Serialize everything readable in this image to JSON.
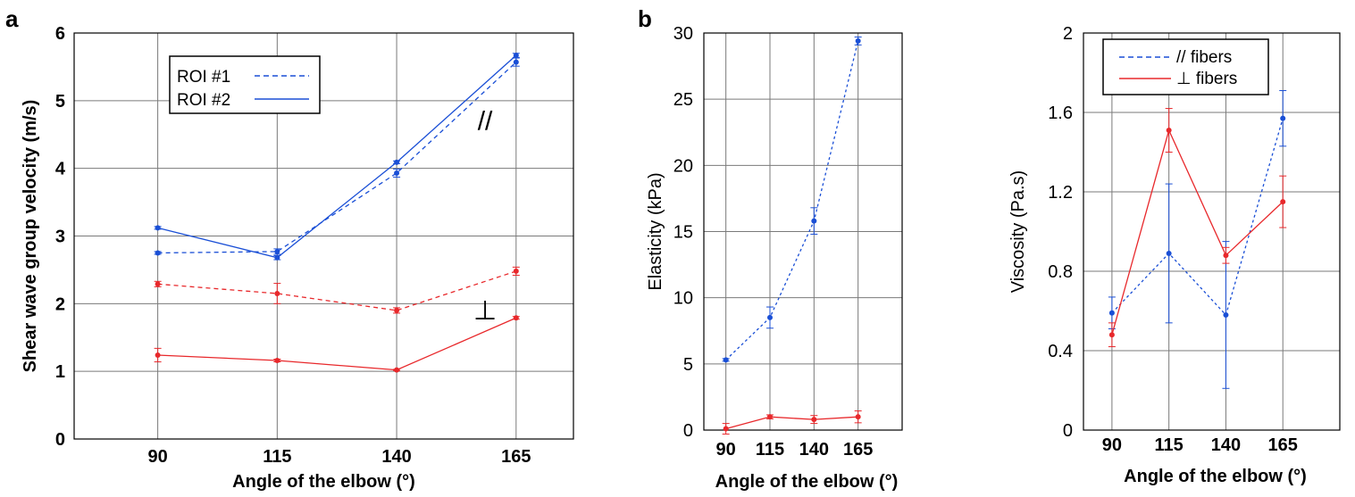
{
  "panels": {
    "a": {
      "label": "a"
    },
    "b": {
      "label": "b"
    }
  },
  "colors": {
    "blue": "#1a4fd6",
    "red": "#e8282b",
    "grid": "#7a7a7a"
  },
  "chart_data": [
    {
      "type": "line",
      "panel": "a",
      "xlabel": "Angle of the elbow (°)",
      "ylabel": "Shear wave group velocity (m/s)",
      "x": [
        90,
        115,
        140,
        165
      ],
      "xticks": [
        "90",
        "115",
        "140",
        "165"
      ],
      "xlim": [
        72.5,
        177
      ],
      "ylim": [
        0,
        6
      ],
      "yticks": [
        "0",
        "1",
        "2",
        "3",
        "4",
        "5",
        "6"
      ],
      "grid": true,
      "legend": {
        "position": "top-left",
        "entries": [
          {
            "label": "ROI #1",
            "style": "dashed"
          },
          {
            "label": "ROI #2",
            "style": "solid"
          }
        ]
      },
      "annotations": [
        {
          "text": "//",
          "x": 158.5,
          "y": 4.7
        },
        {
          "text": "⊥",
          "x": 158.5,
          "y": 1.9
        }
      ],
      "series": [
        {
          "color": "#1a4fd6",
          "style": "dashed",
          "values": [
            2.75,
            2.77,
            3.93,
            5.57
          ],
          "err": [
            0.02,
            0.04,
            0.06,
            0.06
          ]
        },
        {
          "color": "#1a4fd6",
          "style": "solid",
          "values": [
            3.12,
            2.68,
            4.09,
            5.67
          ],
          "err": [
            0.02,
            0.03,
            0.02,
            0.03
          ]
        },
        {
          "color": "#e8282b",
          "style": "dashed",
          "values": [
            2.29,
            2.15,
            1.9,
            2.48
          ],
          "err": [
            0.04,
            0.15,
            0.04,
            0.06
          ]
        },
        {
          "color": "#e8282b",
          "style": "solid",
          "values": [
            1.24,
            1.16,
            1.02,
            1.79
          ],
          "err": [
            0.1,
            0.02,
            0.01,
            0.02
          ]
        }
      ]
    },
    {
      "type": "line",
      "panel": "b-left",
      "xlabel": "Angle of the elbow (°)",
      "ylabel": "Elasticity (kPa)",
      "x": [
        90,
        115,
        140,
        165
      ],
      "xticks": [
        "90",
        "115",
        "140",
        "165"
      ],
      "xlim": [
        77.5,
        190
      ],
      "ylim": [
        0,
        30
      ],
      "yticks": [
        "0",
        "5",
        "10",
        "15",
        "20",
        "25",
        "30"
      ],
      "grid": true,
      "series": [
        {
          "color": "#1a4fd6",
          "style": "dashed",
          "values": [
            5.3,
            8.5,
            15.8,
            29.4
          ],
          "err": [
            0.1,
            0.8,
            1.0,
            0.3
          ]
        },
        {
          "color": "#e8282b",
          "style": "solid",
          "values": [
            0.1,
            1.0,
            0.8,
            1.0
          ],
          "err": [
            0.4,
            0.15,
            0.3,
            0.45
          ]
        }
      ]
    },
    {
      "type": "line",
      "panel": "b-right",
      "xlabel": "Angle of the elbow (°)",
      "ylabel": "Viscosity (Pa.s)",
      "x": [
        90,
        115,
        140,
        165
      ],
      "xticks": [
        "90",
        "115",
        "140",
        "165"
      ],
      "xlim": [
        77.5,
        190
      ],
      "ylim": [
        0,
        2
      ],
      "yticks": [
        "0",
        "0.4",
        "0.8",
        "1.2",
        "1.6",
        "2"
      ],
      "grid": true,
      "legend": {
        "position": "top-left",
        "entries": [
          {
            "label": "// fibers",
            "style": "dashed",
            "color": "#1a4fd6"
          },
          {
            "label": "⊥ fibers",
            "style": "solid",
            "color": "#e8282b"
          }
        ]
      },
      "series": [
        {
          "color": "#1a4fd6",
          "style": "dashed",
          "values": [
            0.59,
            0.89,
            0.58,
            1.57
          ],
          "err": [
            0.08,
            0.35,
            0.37,
            0.14
          ]
        },
        {
          "color": "#e8282b",
          "style": "solid",
          "values": [
            0.48,
            1.51,
            0.88,
            1.15
          ],
          "err": [
            0.06,
            0.11,
            0.04,
            0.13
          ]
        }
      ]
    }
  ]
}
